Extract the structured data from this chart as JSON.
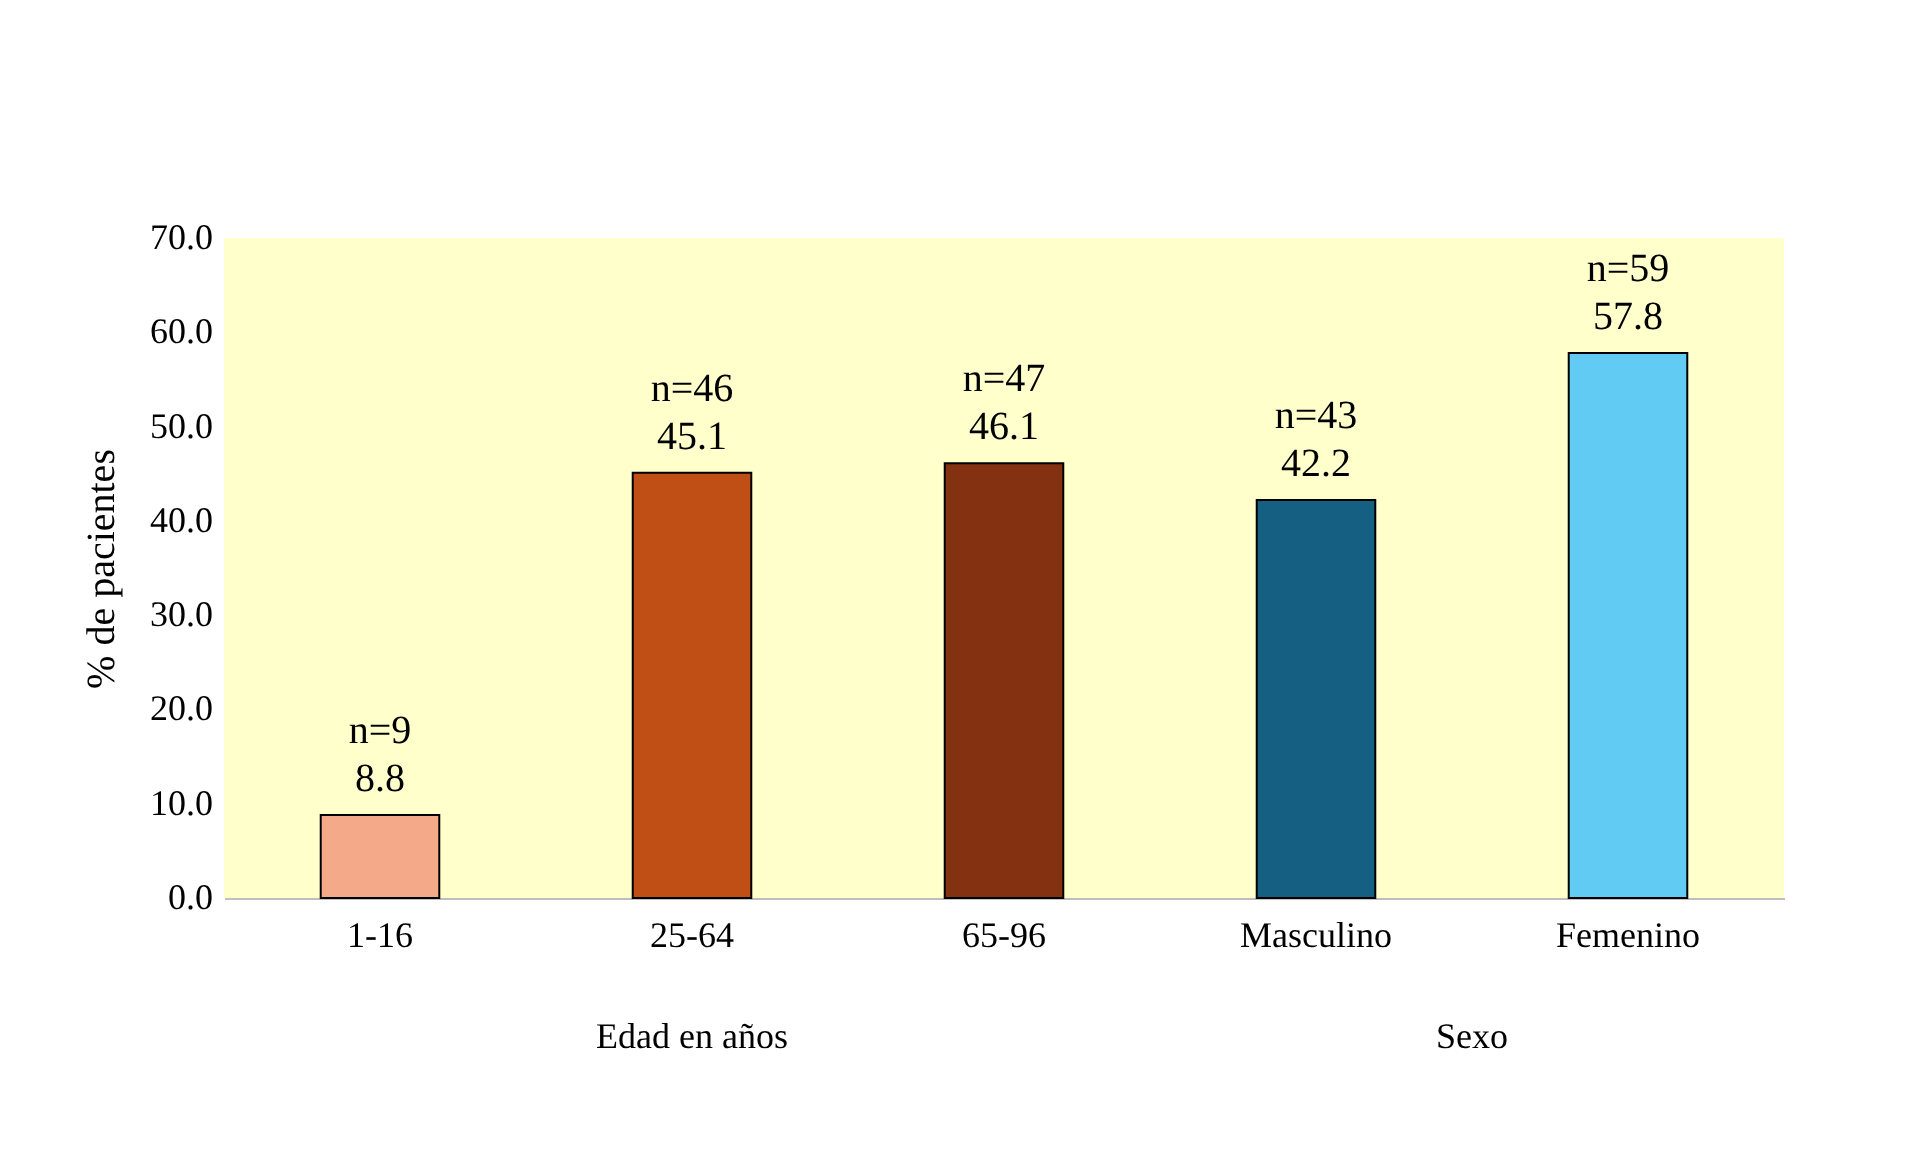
{
  "chart_data": {
    "type": "bar",
    "ylabel": "% de pacientes",
    "categories": [
      "1-16",
      "25-64",
      "65-96",
      "Masculino",
      "Femenino"
    ],
    "values": [
      8.8,
      45.1,
      46.1,
      42.2,
      57.8
    ],
    "colors": [
      "#f4a988",
      "#c04f15",
      "#833111",
      "#156082",
      "#61cbf3"
    ],
    "value_labels": [
      "n=9\n8.8",
      "n=46\n45.1",
      "n=47\n46.1",
      "n=43\n42.2",
      "n=59\n57.8"
    ],
    "ylim": [
      0,
      70
    ],
    "yticks": [
      {
        "value": 0,
        "label": "0.0"
      },
      {
        "value": 10,
        "label": "10.0"
      },
      {
        "value": 20,
        "label": "20.0"
      },
      {
        "value": 30,
        "label": "30.0"
      },
      {
        "value": 40,
        "label": "40.0"
      },
      {
        "value": 50,
        "label": "50.0"
      },
      {
        "value": 60,
        "label": "60.0"
      },
      {
        "value": 70,
        "label": "70.0"
      }
    ],
    "annotations": [
      "Edad en años",
      "Sexo"
    ],
    "grid": false,
    "legend": false
  }
}
